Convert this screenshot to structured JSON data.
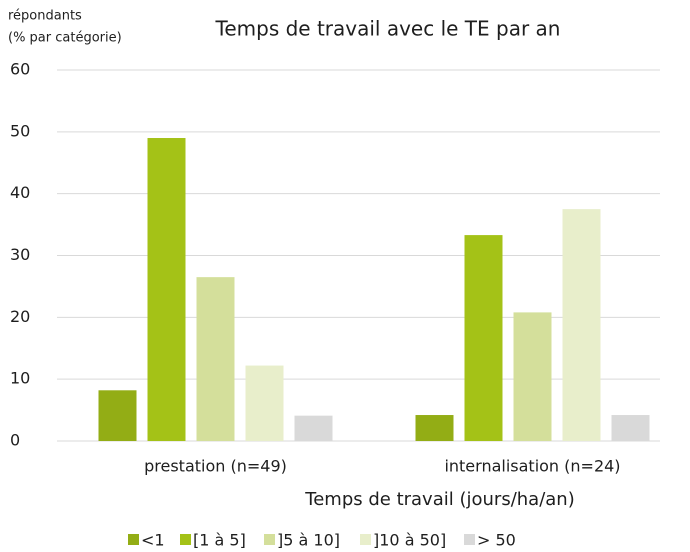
{
  "chart_data": {
    "type": "bar",
    "title": "Temps de travail avec le TE par an",
    "y_label": [
      "répondants",
      "(% par catégorie)"
    ],
    "x_label": "Temps de travail (jours/ha/an)",
    "categories": [
      "prestation (n=49)",
      "internalisation (n=24)"
    ],
    "series": [
      {
        "name": "<1",
        "color": "#93ad15",
        "values": [
          8.2,
          4.2
        ]
      },
      {
        "name": "[1 à 5]",
        "color": "#a4c217",
        "values": [
          49,
          33.3
        ]
      },
      {
        "name": "]5 à 10]",
        "color": "#d4df9b",
        "values": [
          26.5,
          20.8
        ]
      },
      {
        "name": "]10 à 50]",
        "color": "#e8eecb",
        "values": [
          12.2,
          37.5
        ]
      },
      {
        "name": "> 50",
        "color": "#d9d9d9",
        "values": [
          4.1,
          4.2
        ]
      }
    ],
    "ylim": [
      0,
      60
    ],
    "yticks": [
      0,
      10,
      20,
      30,
      40,
      50,
      60
    ],
    "grid": true,
    "legend": "bottom"
  }
}
